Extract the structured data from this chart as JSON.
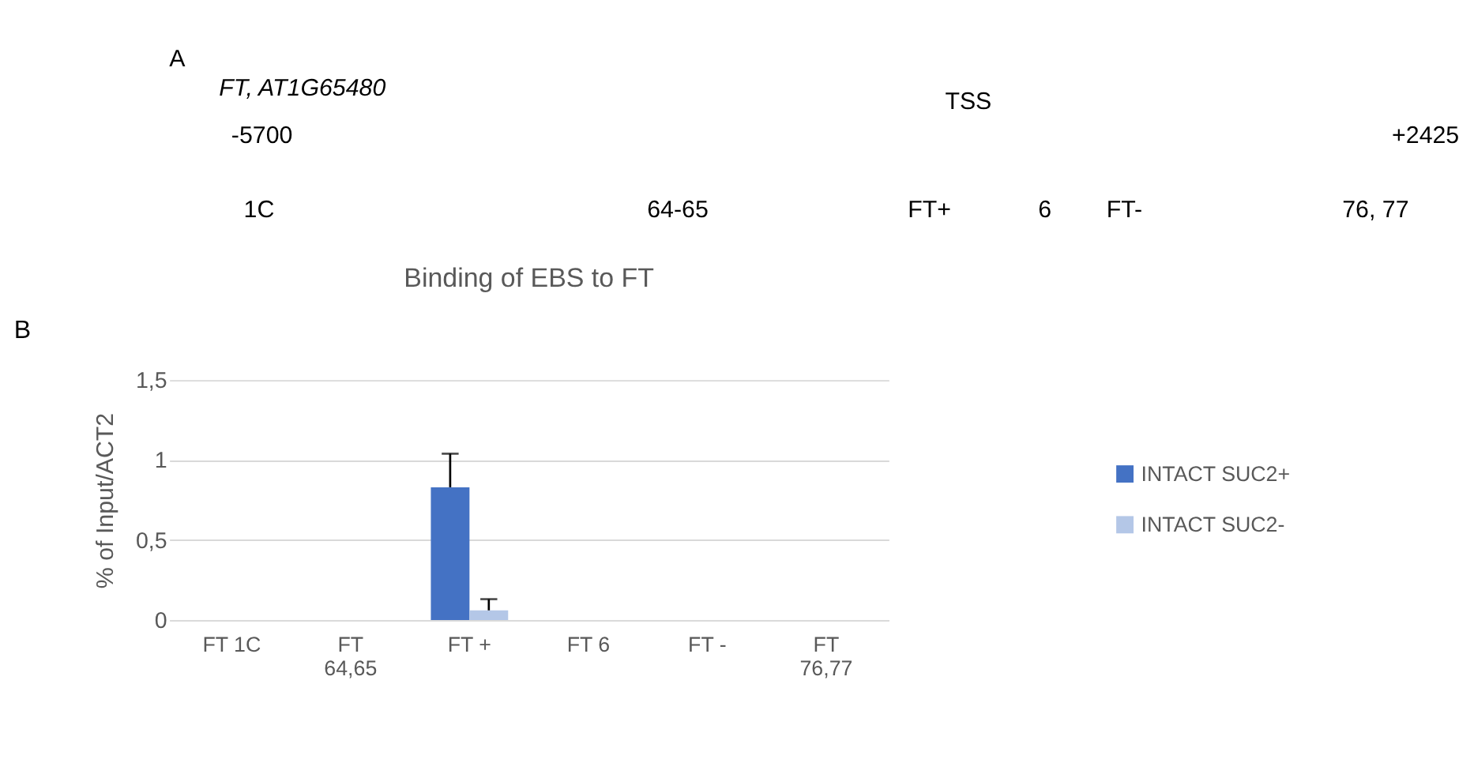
{
  "chart_data": [
    {
      "type": "other",
      "title": "FT, AT1G65480",
      "annotations": [
        "A",
        "TSS",
        "-5700",
        "+2425",
        "1C",
        "64-65",
        "FT+",
        "6",
        "FT-",
        "76, 77"
      ]
    },
    {
      "type": "bar",
      "title": "Binding of EBS to FT",
      "ylabel": "% of Input/ACT2",
      "annotations": [
        "B"
      ],
      "categories": [
        "FT 1C",
        "FT 64,65",
        "FT +",
        "FT 6",
        "FT -",
        "FT 76,77"
      ],
      "series": [
        {
          "name": "INTACT SUC2+",
          "color": "#4472c4",
          "values": [
            0,
            0,
            0.83,
            0,
            0,
            0
          ],
          "errors": [
            null,
            null,
            0.21,
            null,
            null,
            null
          ]
        },
        {
          "name": "INTACT SUC2-",
          "color": "#b4c7e7",
          "values": [
            0,
            0,
            0.06,
            0,
            0,
            0
          ],
          "errors": [
            null,
            null,
            0.07,
            null,
            null,
            null
          ]
        }
      ],
      "ylim": [
        0,
        1.5
      ],
      "yticks": [
        {
          "value": 0,
          "label": "0"
        },
        {
          "value": 0.5,
          "label": "0,5"
        },
        {
          "value": 1,
          "label": "1"
        },
        {
          "value": 1.5,
          "label": "1,5"
        }
      ],
      "grid": "y",
      "legend": "right"
    }
  ]
}
